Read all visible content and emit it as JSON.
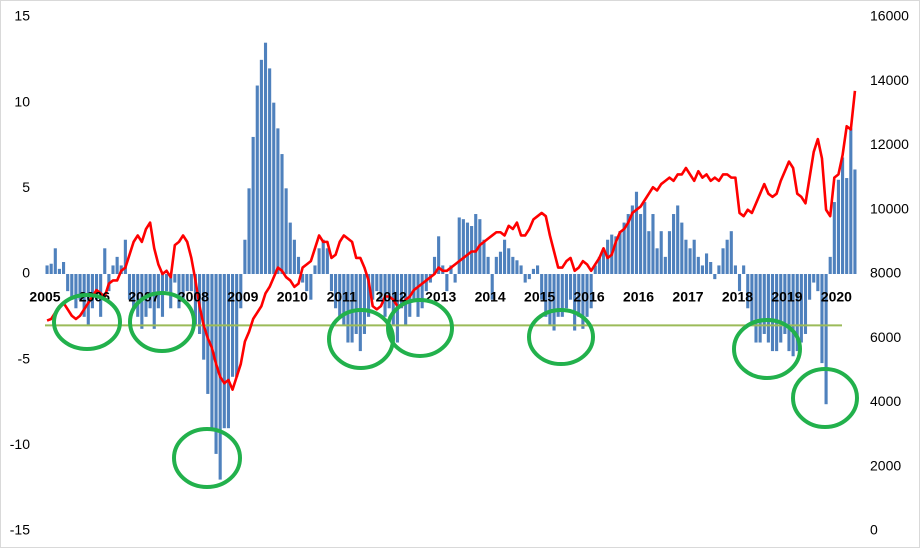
{
  "chart_data": {
    "type": "bar",
    "categories": [
      "2005",
      null,
      null,
      null,
      null,
      null,
      null,
      null,
      null,
      null,
      null,
      null,
      "2006",
      null,
      null,
      null,
      null,
      null,
      null,
      null,
      null,
      null,
      null,
      null,
      "2007",
      null,
      null,
      null,
      null,
      null,
      null,
      null,
      null,
      null,
      null,
      null,
      "2008",
      null,
      null,
      null,
      null,
      null,
      null,
      null,
      null,
      null,
      null,
      null,
      "2009",
      null,
      null,
      null,
      null,
      null,
      null,
      null,
      null,
      null,
      null,
      null,
      "2010",
      null,
      null,
      null,
      null,
      null,
      null,
      null,
      null,
      null,
      null,
      null,
      "2011",
      null,
      null,
      null,
      null,
      null,
      null,
      null,
      null,
      null,
      null,
      null,
      "2012",
      null,
      null,
      null,
      null,
      null,
      null,
      null,
      null,
      null,
      null,
      null,
      "2013",
      null,
      null,
      null,
      null,
      null,
      null,
      null,
      null,
      null,
      null,
      null,
      "2014",
      null,
      null,
      null,
      null,
      null,
      null,
      null,
      null,
      null,
      null,
      null,
      "2015",
      null,
      null,
      null,
      null,
      null,
      null,
      null,
      null,
      null,
      null,
      null,
      "2016",
      null,
      null,
      null,
      null,
      null,
      null,
      null,
      null,
      null,
      null,
      null,
      "2016",
      null,
      null,
      null,
      null,
      null,
      null,
      null,
      null,
      null,
      null,
      null,
      "2017",
      null,
      null,
      null,
      null,
      null,
      null,
      null,
      null,
      null,
      null,
      null,
      "2018",
      null,
      null,
      null,
      null,
      null,
      null,
      null,
      null,
      null,
      null,
      null,
      "2019",
      null,
      null,
      null,
      null,
      null,
      null,
      null,
      null,
      null,
      null,
      null,
      "2020",
      null,
      null,
      null,
      null
    ],
    "series": [
      {
        "type": "bar",
        "color": "#4f81bd",
        "axis": "y",
        "values": [
          0.5,
          0.6,
          1.5,
          0.3,
          0.7,
          -1,
          -1.5,
          -2,
          -1.5,
          -2.5,
          -3,
          -2,
          -1.5,
          -2.5,
          1.5,
          -1,
          0.5,
          1,
          0.5,
          2,
          -1.5,
          -2,
          -2.5,
          -3.2,
          -2.5,
          -2,
          -3.2,
          -2,
          -2.5,
          -1,
          -2,
          -0.5,
          -2,
          -1.5,
          -1,
          -1,
          -3,
          -3.5,
          -5,
          -7,
          -9,
          -10.5,
          -12,
          -9,
          -9,
          -6,
          -6,
          -2,
          2,
          5,
          8,
          11,
          12.5,
          13.5,
          12,
          10,
          8.5,
          7,
          5,
          3,
          2,
          1,
          -0.5,
          -1,
          -1.5,
          0.5,
          1.5,
          2,
          1.5,
          -1,
          -2,
          -2.5,
          -3,
          -4,
          -4,
          -3.5,
          -4.5,
          -3.5,
          -2.5,
          -1.5,
          -1,
          -1.5,
          -2.5,
          -2,
          -3,
          -4,
          -2,
          -3,
          -2.5,
          -1.5,
          -2.5,
          -2,
          -1,
          -0.5,
          1,
          2.2,
          0.5,
          -1,
          0.5,
          -0.5,
          3.3,
          3.2,
          3,
          2.8,
          3.5,
          3.2,
          2,
          1,
          -1.5,
          1,
          1.3,
          2,
          1.5,
          1,
          0.8,
          0.5,
          -0.5,
          -0.3,
          0.3,
          0.5,
          -1.5,
          -2.5,
          -3,
          -3.3,
          -2.5,
          -2.5,
          -2,
          -1.5,
          -3.3,
          -2.5,
          -3.2,
          -2.5,
          -2,
          0.5,
          1,
          1.5,
          2,
          2.3,
          2.2,
          2.5,
          3,
          3.5,
          4,
          4.8,
          3.5,
          4.2,
          2.5,
          3.5,
          1.5,
          2.5,
          1,
          2.5,
          3.5,
          4,
          3,
          2,
          1.5,
          2,
          1,
          0.5,
          1.2,
          0.7,
          -0.3,
          0.5,
          1.5,
          2,
          2.5,
          0.5,
          -1,
          0.5,
          -2,
          -3,
          -4,
          -4,
          -3.5,
          -4,
          -4.5,
          -4.5,
          -4,
          -3.5,
          -4.5,
          -4.8,
          -4.5,
          -4,
          -3.5,
          -1.5,
          -0.5,
          -1,
          -5.2,
          -7.6,
          1,
          4.2,
          5.5,
          6.8,
          5.6,
          8.5,
          6.1
        ]
      },
      {
        "type": "line",
        "color": "#ff0000",
        "axis": "y2",
        "values": [
          6550,
          6600,
          6800,
          7000,
          7100,
          6900,
          6700,
          6600,
          6700,
          6900,
          7100,
          7300,
          7500,
          7400,
          7300,
          7700,
          7800,
          7800,
          8100,
          8200,
          8600,
          9000,
          9200,
          9000,
          9400,
          9600,
          8800,
          8300,
          8000,
          8100,
          7900,
          8900,
          9000,
          9200,
          9000,
          8500,
          7800,
          7000,
          6400,
          6000,
          5700,
          5200,
          4800,
          4600,
          4700,
          4400,
          4800,
          5200,
          5900,
          6200,
          6600,
          6800,
          7000,
          7400,
          7600,
          7900,
          8200,
          8100,
          7900,
          7800,
          7600,
          7700,
          8200,
          8300,
          8400,
          8800,
          9200,
          9000,
          9000,
          8500,
          8600,
          9000,
          9200,
          9100,
          9000,
          8500,
          8500,
          8200,
          7800,
          7000,
          6900,
          7000,
          7300,
          7300,
          7200,
          7000,
          7000,
          7200,
          7300,
          7500,
          7600,
          7700,
          7800,
          7900,
          8000,
          8200,
          8100,
          8100,
          8200,
          8300,
          8400,
          8500,
          8600,
          8700,
          8700,
          8900,
          9000,
          9100,
          9200,
          9300,
          9300,
          9200,
          9500,
          9400,
          9600,
          9200,
          9200,
          9400,
          9700,
          9800,
          9900,
          9800,
          9200,
          8700,
          8200,
          8200,
          8400,
          8500,
          8100,
          8200,
          8400,
          8300,
          8100,
          8300,
          8500,
          8800,
          8500,
          8600,
          9000,
          9300,
          9400,
          9600,
          9900,
          10000,
          10100,
          10300,
          10500,
          10700,
          10600,
          10800,
          10900,
          11000,
          10900,
          11100,
          11100,
          11300,
          11100,
          10900,
          11200,
          11000,
          11100,
          10900,
          11000,
          10900,
          11100,
          11100,
          11000,
          11000,
          9900,
          9800,
          10000,
          9900,
          10200,
          10500,
          10800,
          10500,
          10400,
          10500,
          10900,
          11200,
          11500,
          11300,
          10500,
          10400,
          10200,
          11000,
          11800,
          12200,
          11600,
          10000,
          9800,
          11000,
          11100,
          11700,
          12600,
          12500,
          13700
        ]
      }
    ],
    "reference_line": -3,
    "reference_color": "#9bbb59",
    "ylim": [
      -15,
      15
    ],
    "yticks": [
      15,
      10,
      5,
      0,
      -5,
      -10,
      -15
    ],
    "y2lim": [
      0,
      16000
    ],
    "y2ticks": [
      16000,
      14000,
      12000,
      10000,
      8000,
      6000,
      4000,
      2000,
      0
    ],
    "grid": false
  }
}
